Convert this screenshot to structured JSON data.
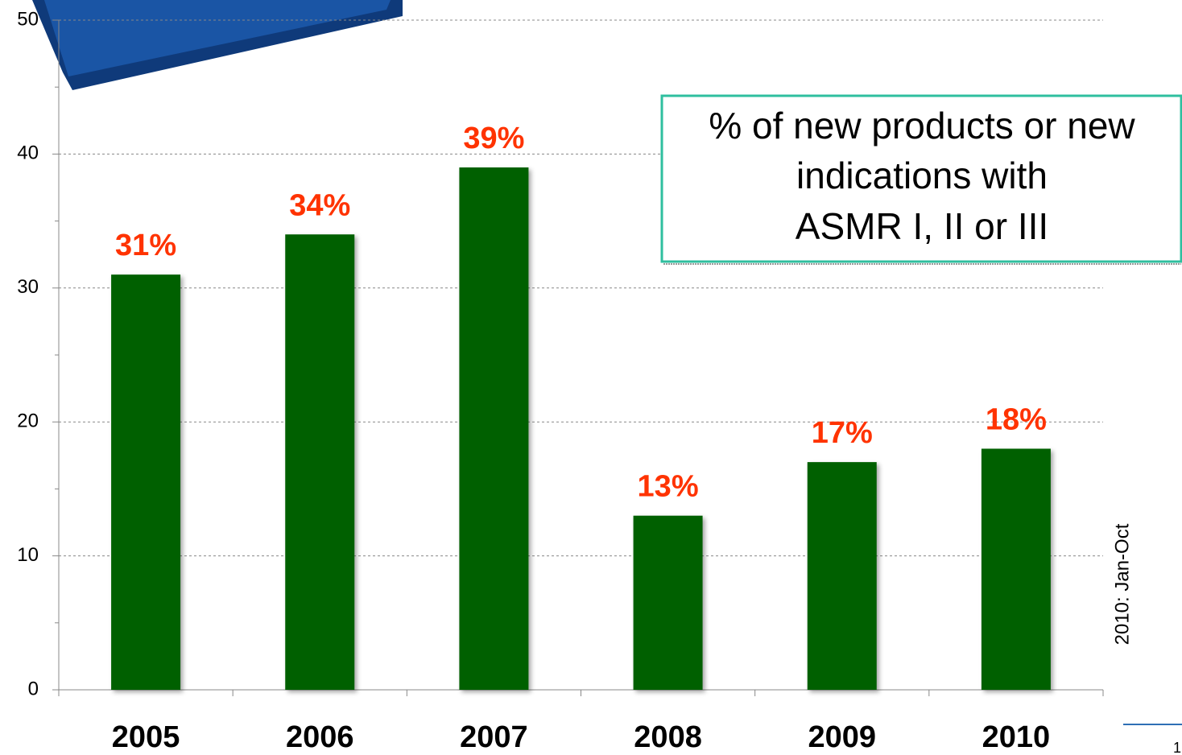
{
  "chart_data": {
    "type": "bar",
    "categories": [
      "2005",
      "2006",
      "2007",
      "2008",
      "2009",
      "2010"
    ],
    "values": [
      31,
      34,
      39,
      13,
      17,
      18
    ],
    "value_labels": [
      "31%",
      "34%",
      "39%",
      "13%",
      "17%",
      "18%"
    ],
    "color": "#006000",
    "label_color": "#ff3300",
    "ylim": [
      0,
      50
    ],
    "yticks": [
      0,
      10,
      20,
      30,
      40,
      50
    ],
    "minor_yticks": [
      5,
      15,
      25,
      35,
      45
    ],
    "grid": true,
    "annotation": [
      "% of new products or new",
      "indications with",
      "ASMR  I, II or III"
    ],
    "side_note": "2010: Jan-Oct",
    "page_number": "1"
  }
}
